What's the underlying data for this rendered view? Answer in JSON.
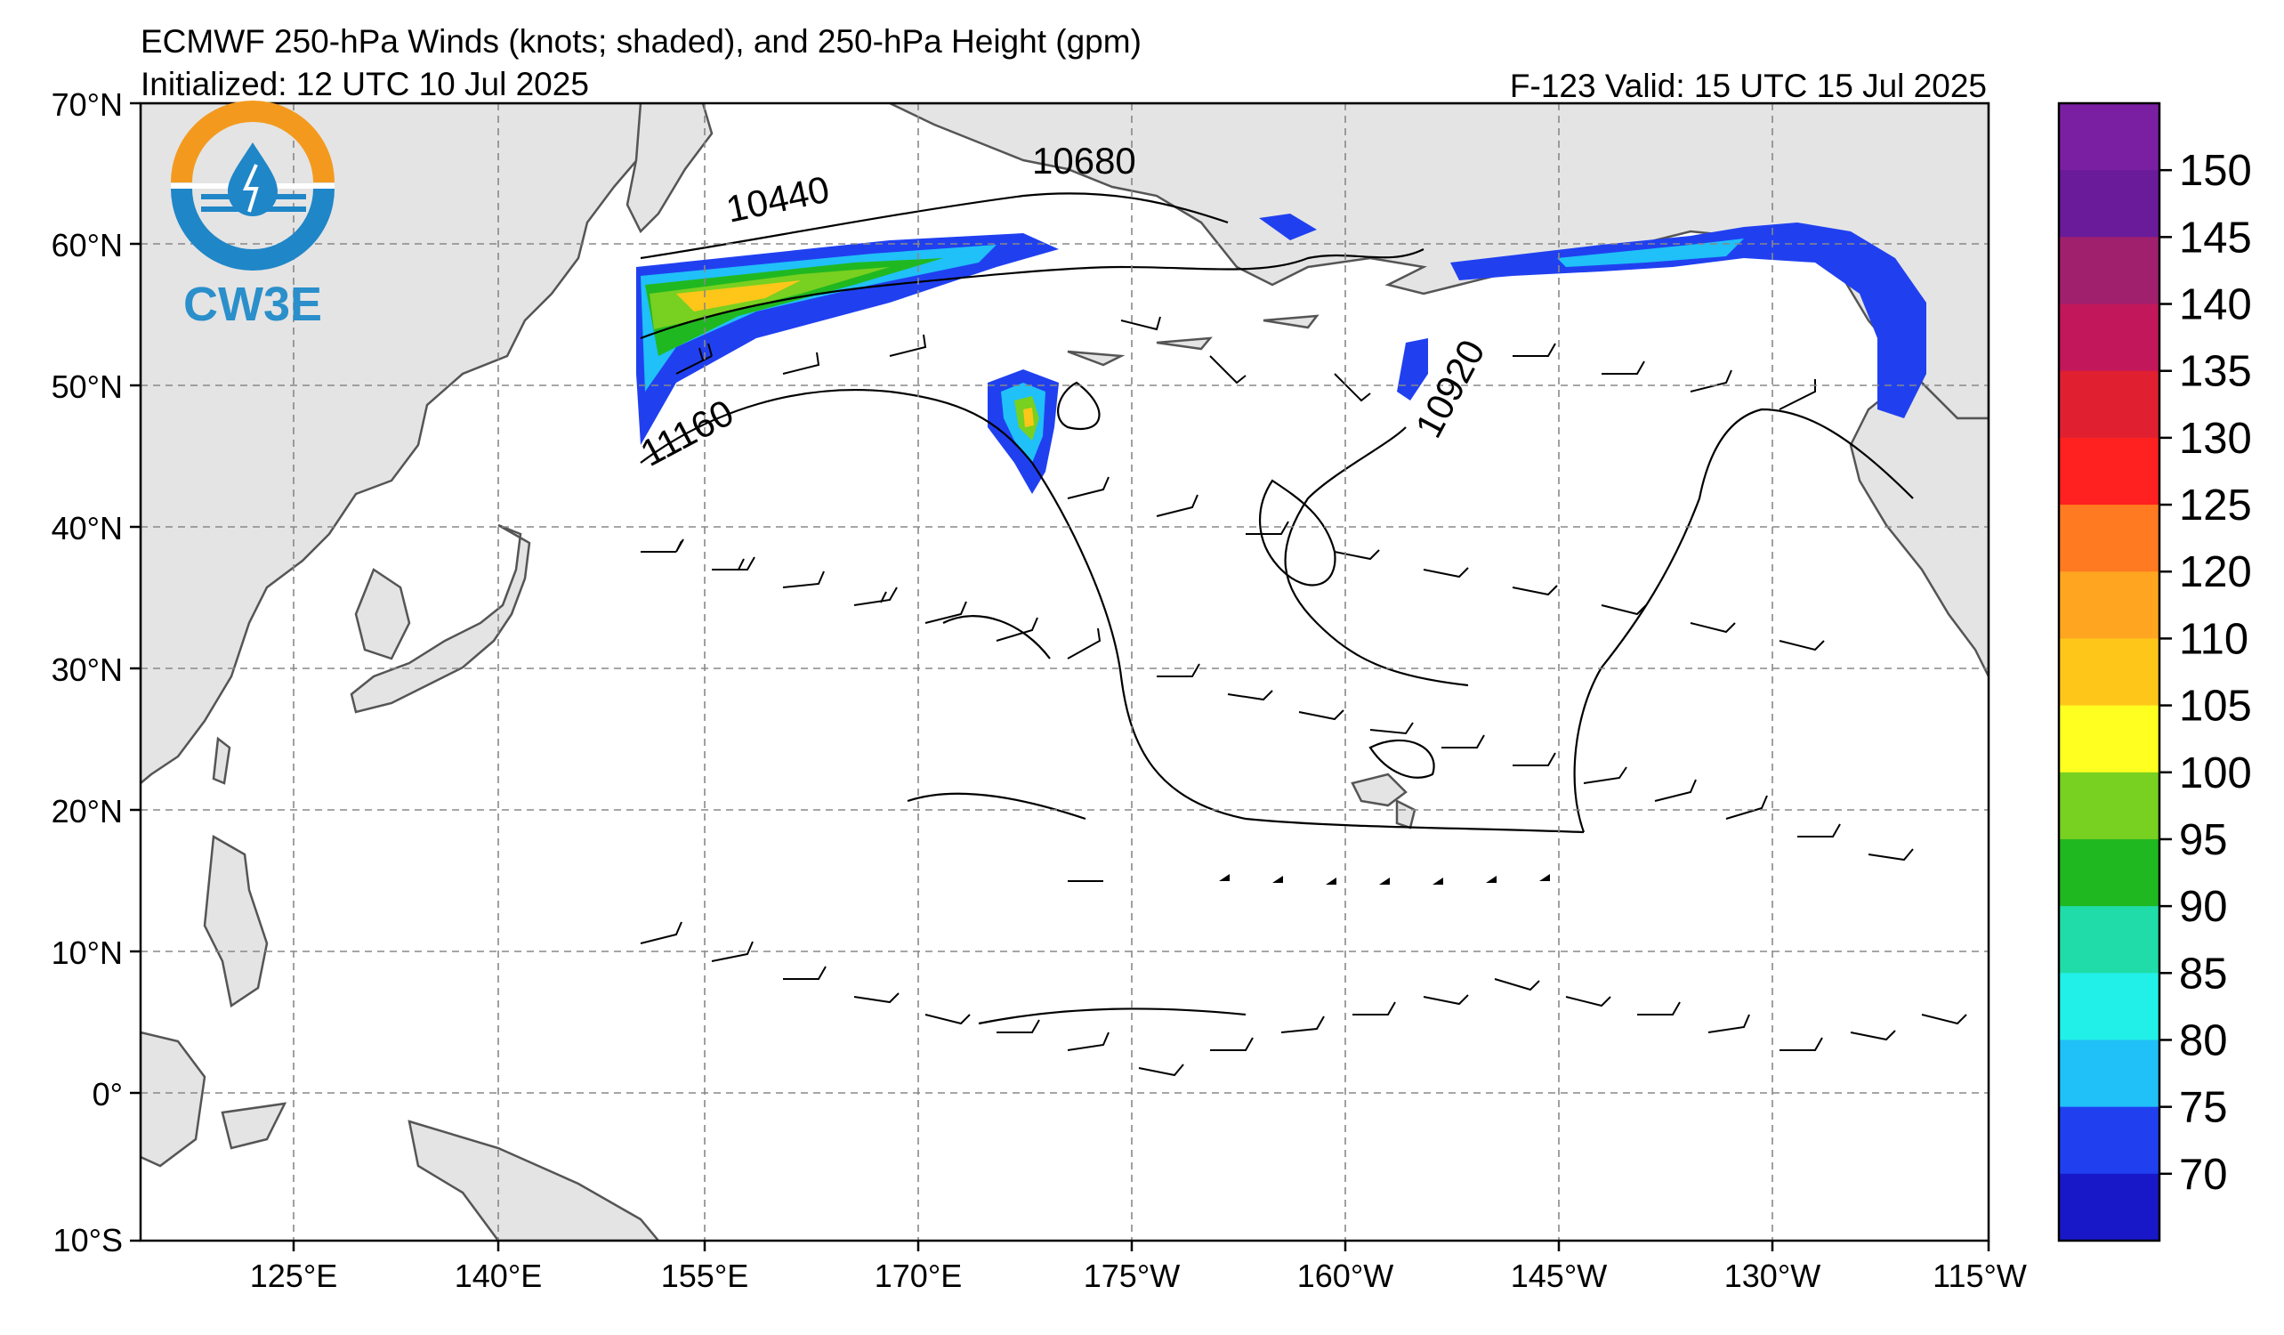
{
  "header": {
    "title_line1": "ECMWF 250-hPa Winds (knots; shaded), and 250-hPa Height (gpm)",
    "title_line2": "Initialized: 12 UTC 10 Jul 2025",
    "valid": "F-123  Valid: 15 UTC 15 Jul 2025"
  },
  "logo": {
    "text": "CW3E",
    "icon": "water-drop-sun-logo-icon"
  },
  "axes": {
    "lat_labels": [
      "70°N",
      "60°N",
      "50°N",
      "40°N",
      "30°N",
      "20°N",
      "10°N",
      "0°",
      "10°S"
    ],
    "lon_labels": [
      "125°E",
      "140°E",
      "155°E",
      "170°E",
      "175°W",
      "160°W",
      "145°W",
      "130°W",
      "115°W"
    ]
  },
  "contour_labels": [
    "10440",
    "10680",
    "11160",
    "10920"
  ],
  "colorbar": {
    "labels": [
      "150",
      "145",
      "140",
      "135",
      "130",
      "125",
      "120",
      "110",
      "105",
      "100",
      "95",
      "90",
      "85",
      "80",
      "75",
      "70"
    ],
    "colors": [
      "#7a1fa2",
      "#6a1b9a",
      "#a0206e",
      "#c2185b",
      "#e02030",
      "#ff2020",
      "#ff7a20",
      "#ffa520",
      "#ffc61a",
      "#ffff20",
      "#78d020",
      "#20b820",
      "#20dca8",
      "#20f0e8",
      "#20c0f8",
      "#2040f0",
      "#1818c8"
    ],
    "units": "knots"
  }
}
